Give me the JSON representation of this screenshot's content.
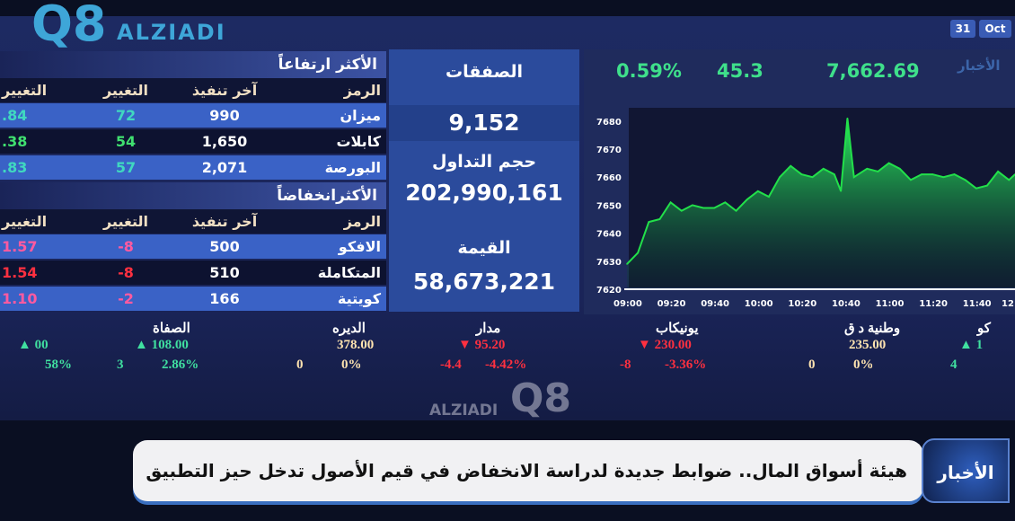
{
  "watermark": {
    "brand": "ALZIADI",
    "mark": "Q8"
  },
  "date": {
    "day": "31",
    "month": "Oct"
  },
  "gainers": {
    "title": "الأكثر ارتفاعاً",
    "headers": [
      "الرمز",
      "آخر تنفيذ",
      "التغيير",
      "التغيير"
    ],
    "rows": [
      [
        "ميزان",
        "990",
        "72",
        ".84"
      ],
      [
        "كابلات",
        "1,650",
        "54",
        ".38"
      ],
      [
        "البورصة",
        "2,071",
        "57",
        ".83"
      ]
    ]
  },
  "losers": {
    "title": "الأكثرانخفاضاً",
    "headers": [
      "الرمز",
      "آخر تنفيذ",
      "التغيير",
      "التغيير"
    ],
    "rows": [
      [
        "الافكو",
        "500",
        "-8",
        "1.57"
      ],
      [
        "المتكاملة",
        "510",
        "-8",
        "1.54"
      ],
      [
        "كويتية",
        "166",
        "-2",
        "1.10"
      ]
    ]
  },
  "summary": {
    "deals_label": "الصفقات",
    "deals": "9,152",
    "volume_label": "حجم التداول",
    "volume": "202,990,161",
    "value_label": "القيمة",
    "value": "58,673,221"
  },
  "index": {
    "change_pct": "0.59%",
    "change": "45.3",
    "value": "7,662.69",
    "logo": "الأخبار"
  },
  "chart_data": {
    "type": "area",
    "color": "#22e04a",
    "ylim": [
      7620,
      7680
    ],
    "yticks": [
      "7680",
      "7670",
      "7660",
      "7650",
      "7640",
      "7630",
      "7620"
    ],
    "xticks": [
      "09:00",
      "09:20",
      "09:40",
      "10:00",
      "10:20",
      "10:40",
      "11:00",
      "11:20",
      "11:40",
      "12"
    ],
    "x": [
      "09:00",
      "09:05",
      "09:10",
      "09:15",
      "09:20",
      "09:25",
      "09:30",
      "09:35",
      "09:40",
      "09:45",
      "09:50",
      "09:55",
      "10:00",
      "10:05",
      "10:10",
      "10:15",
      "10:20",
      "10:25",
      "10:30",
      "10:35",
      "10:38",
      "10:41",
      "10:44",
      "10:50",
      "10:55",
      "11:00",
      "11:05",
      "11:10",
      "11:15",
      "11:20",
      "11:25",
      "11:30",
      "11:35",
      "11:40",
      "11:45",
      "11:50",
      "11:55",
      "12:00"
    ],
    "y": [
      7629,
      7633,
      7644,
      7645,
      7651,
      7648,
      7650,
      7649,
      7649,
      7651,
      7648,
      7652,
      7655,
      7653,
      7660,
      7664,
      7661,
      7660,
      7663,
      7661,
      7655,
      7681,
      7660,
      7663,
      7662,
      7665,
      7663,
      7659,
      7661,
      7661,
      7660,
      7661,
      7659,
      7656,
      7657,
      7662,
      7659,
      7661
    ]
  },
  "ticker": [
    {
      "name": "",
      "price": "00",
      "dir": "up",
      "chg": "",
      "pct": "58%"
    },
    {
      "name": "الصفاة",
      "price": "108.00",
      "dir": "up",
      "chg": "3",
      "pct": "2.86%"
    },
    {
      "name": "الديره",
      "price": "378.00",
      "dir": "nt",
      "chg": "0",
      "pct": "0%"
    },
    {
      "name": "مدار",
      "price": "95.20",
      "dir": "dn",
      "chg": "-4.4",
      "pct": "-4.42%"
    },
    {
      "name": "يونيكاب",
      "price": "230.00",
      "dir": "dn",
      "chg": "-8",
      "pct": "-3.36%"
    },
    {
      "name": "وطنية د ق",
      "price": "235.00",
      "dir": "nt",
      "chg": "0",
      "pct": "0%"
    },
    {
      "name": "كو",
      "price": "1",
      "dir": "up",
      "chg": "4",
      "pct": ""
    }
  ],
  "news": {
    "headline": "هيئة أسواق المال.. ضوابط جديدة لدراسة الانخفاض في قيم الأصول تدخل حيز التطبيق",
    "logo": "الأخبار"
  }
}
